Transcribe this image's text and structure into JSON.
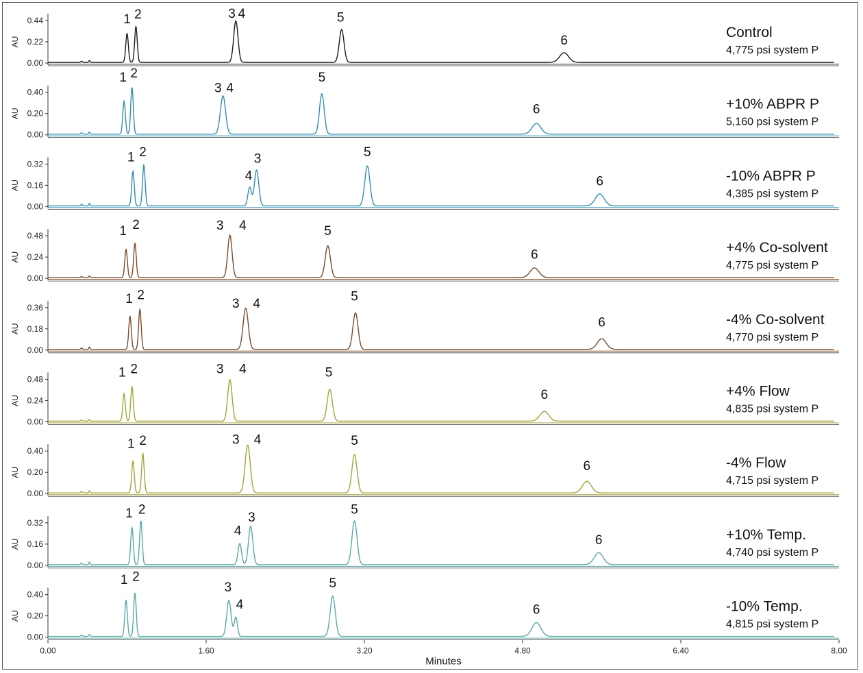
{
  "chart_data": {
    "type": "line",
    "xlabel": "Minutes",
    "ylabel": "AU",
    "xlim": [
      0,
      8
    ],
    "x_ticks": [
      "0.00",
      "1.60",
      "3.20",
      "4.80",
      "6.40",
      "8.00"
    ],
    "panels": [
      {
        "label": "Control",
        "pressure": "4,775 psi system P",
        "color": "#1a1a1a",
        "ymax": 0.44,
        "y_ticks": [
          "0.00",
          "0.22",
          "0.44"
        ],
        "peaks": [
          {
            "id": "1",
            "t": 0.8,
            "h": 0.3,
            "w": 0.013
          },
          {
            "id": "2",
            "t": 0.89,
            "h": 0.37,
            "w": 0.013
          },
          {
            "id": "3",
            "t": 1.9,
            "h": 0.43,
            "w": 0.022
          },
          {
            "id": "4",
            "t": 1.9,
            "h": 0.0,
            "w": 0.022
          },
          {
            "id": "5",
            "t": 2.97,
            "h": 0.34,
            "w": 0.024
          },
          {
            "id": "6",
            "t": 5.22,
            "h": 0.1,
            "w": 0.045
          }
        ],
        "labels": [
          {
            "id": "1",
            "t": 0.8,
            "h": 0.41
          },
          {
            "id": "2",
            "t": 0.91,
            "h": 0.46
          },
          {
            "id": "3",
            "t": 1.86,
            "h": 0.47
          },
          {
            "id": "4",
            "t": 1.96,
            "h": 0.47
          },
          {
            "id": "5",
            "t": 2.96,
            "h": 0.43
          },
          {
            "id": "6",
            "t": 5.22,
            "h": 0.19
          }
        ]
      },
      {
        "label": "+10% ABPR P",
        "pressure": "5,160 psi system P",
        "color": "#2f8fb0",
        "ymax": 0.4,
        "y_ticks": [
          "0.00",
          "0.20",
          "0.40"
        ],
        "peaks": [
          {
            "id": "1",
            "t": 0.77,
            "h": 0.31,
            "w": 0.013
          },
          {
            "id": "2",
            "t": 0.85,
            "h": 0.44,
            "w": 0.013
          },
          {
            "id": "3",
            "t": 1.77,
            "h": 0.36,
            "w": 0.026
          },
          {
            "id": "5",
            "t": 2.77,
            "h": 0.38,
            "w": 0.024
          },
          {
            "id": "6",
            "t": 4.94,
            "h": 0.1,
            "w": 0.045
          }
        ],
        "labels": [
          {
            "id": "1",
            "t": 0.76,
            "h": 0.5
          },
          {
            "id": "2",
            "t": 0.87,
            "h": 0.54
          },
          {
            "id": "3",
            "t": 1.72,
            "h": 0.4
          },
          {
            "id": "4",
            "t": 1.84,
            "h": 0.4
          },
          {
            "id": "5",
            "t": 2.77,
            "h": 0.5
          },
          {
            "id": "6",
            "t": 4.94,
            "h": 0.2
          }
        ]
      },
      {
        "label": "-10% ABPR P",
        "pressure": "4,385 psi system P",
        "color": "#2f8fb0",
        "ymax": 0.32,
        "y_ticks": [
          "0.00",
          "0.16",
          "0.32"
        ],
        "peaks": [
          {
            "id": "1",
            "t": 0.86,
            "h": 0.26,
            "w": 0.013
          },
          {
            "id": "2",
            "t": 0.97,
            "h": 0.31,
            "w": 0.013
          },
          {
            "id": "4",
            "t": 2.04,
            "h": 0.14,
            "w": 0.018
          },
          {
            "id": "3",
            "t": 2.11,
            "h": 0.27,
            "w": 0.022
          },
          {
            "id": "5",
            "t": 3.23,
            "h": 0.3,
            "w": 0.026
          },
          {
            "id": "6",
            "t": 5.58,
            "h": 0.09,
            "w": 0.045
          }
        ],
        "labels": [
          {
            "id": "1",
            "t": 0.84,
            "h": 0.34
          },
          {
            "id": "2",
            "t": 0.96,
            "h": 0.38
          },
          {
            "id": "4",
            "t": 2.03,
            "h": 0.2
          },
          {
            "id": "3",
            "t": 2.12,
            "h": 0.33
          },
          {
            "id": "5",
            "t": 3.23,
            "h": 0.38
          },
          {
            "id": "6",
            "t": 5.58,
            "h": 0.16
          }
        ]
      },
      {
        "label": "+4% Co-solvent",
        "pressure": "4,775 psi system P",
        "color": "#7a4a28",
        "ymax": 0.48,
        "y_ticks": [
          "0.00",
          "0.24",
          "0.48"
        ],
        "peaks": [
          {
            "id": "1",
            "t": 0.79,
            "h": 0.32,
            "w": 0.013
          },
          {
            "id": "2",
            "t": 0.88,
            "h": 0.39,
            "w": 0.013
          },
          {
            "id": "3",
            "t": 1.84,
            "h": 0.48,
            "w": 0.022
          },
          {
            "id": "5",
            "t": 2.83,
            "h": 0.36,
            "w": 0.026
          },
          {
            "id": "6",
            "t": 4.92,
            "h": 0.11,
            "w": 0.045
          }
        ],
        "labels": [
          {
            "id": "1",
            "t": 0.76,
            "h": 0.49
          },
          {
            "id": "2",
            "t": 0.89,
            "h": 0.56
          },
          {
            "id": "3",
            "t": 1.74,
            "h": 0.55
          },
          {
            "id": "4",
            "t": 1.97,
            "h": 0.55
          },
          {
            "id": "5",
            "t": 2.83,
            "h": 0.49
          },
          {
            "id": "6",
            "t": 4.92,
            "h": 0.22
          }
        ]
      },
      {
        "label": "-4% Co-solvent",
        "pressure": "4,770 psi system P",
        "color": "#7a4a28",
        "ymax": 0.36,
        "y_ticks": [
          "0.00",
          "0.18",
          "0.36"
        ],
        "peaks": [
          {
            "id": "1",
            "t": 0.83,
            "h": 0.28,
            "w": 0.013
          },
          {
            "id": "2",
            "t": 0.93,
            "h": 0.34,
            "w": 0.013
          },
          {
            "id": "3",
            "t": 2.0,
            "h": 0.35,
            "w": 0.026
          },
          {
            "id": "5",
            "t": 3.11,
            "h": 0.31,
            "w": 0.026
          },
          {
            "id": "6",
            "t": 5.6,
            "h": 0.09,
            "w": 0.045
          }
        ],
        "labels": [
          {
            "id": "1",
            "t": 0.82,
            "h": 0.4
          },
          {
            "id": "2",
            "t": 0.94,
            "h": 0.43
          },
          {
            "id": "3",
            "t": 1.9,
            "h": 0.36
          },
          {
            "id": "4",
            "t": 2.11,
            "h": 0.36
          },
          {
            "id": "5",
            "t": 3.1,
            "h": 0.42
          },
          {
            "id": "6",
            "t": 5.6,
            "h": 0.2
          }
        ]
      },
      {
        "label": "+4% Flow",
        "pressure": "4,835 psi system P",
        "color": "#a3a43a",
        "ymax": 0.48,
        "y_ticks": [
          "0.00",
          "0.24",
          "0.48"
        ],
        "peaks": [
          {
            "id": "1",
            "t": 0.77,
            "h": 0.31,
            "w": 0.013
          },
          {
            "id": "2",
            "t": 0.85,
            "h": 0.39,
            "w": 0.013
          },
          {
            "id": "3",
            "t": 1.84,
            "h": 0.47,
            "w": 0.022
          },
          {
            "id": "5",
            "t": 2.85,
            "h": 0.36,
            "w": 0.026
          },
          {
            "id": "6",
            "t": 5.02,
            "h": 0.11,
            "w": 0.045
          }
        ],
        "labels": [
          {
            "id": "1",
            "t": 0.75,
            "h": 0.51
          },
          {
            "id": "2",
            "t": 0.87,
            "h": 0.55
          },
          {
            "id": "3",
            "t": 1.74,
            "h": 0.55
          },
          {
            "id": "4",
            "t": 1.97,
            "h": 0.55
          },
          {
            "id": "5",
            "t": 2.84,
            "h": 0.51
          },
          {
            "id": "6",
            "t": 5.02,
            "h": 0.26
          }
        ]
      },
      {
        "label": "-4% Flow",
        "pressure": "4,715 psi system P",
        "color": "#a3a43a",
        "ymax": 0.4,
        "y_ticks": [
          "0.00",
          "0.20",
          "0.40"
        ],
        "peaks": [
          {
            "id": "1",
            "t": 0.86,
            "h": 0.3,
            "w": 0.013
          },
          {
            "id": "2",
            "t": 0.96,
            "h": 0.37,
            "w": 0.013
          },
          {
            "id": "3",
            "t": 2.02,
            "h": 0.45,
            "w": 0.026
          },
          {
            "id": "5",
            "t": 3.1,
            "h": 0.36,
            "w": 0.026
          },
          {
            "id": "6",
            "t": 5.45,
            "h": 0.11,
            "w": 0.045
          }
        ],
        "labels": [
          {
            "id": "1",
            "t": 0.84,
            "h": 0.43
          },
          {
            "id": "2",
            "t": 0.96,
            "h": 0.46
          },
          {
            "id": "3",
            "t": 1.9,
            "h": 0.47
          },
          {
            "id": "4",
            "t": 2.12,
            "h": 0.47
          },
          {
            "id": "5",
            "t": 3.1,
            "h": 0.46
          },
          {
            "id": "6",
            "t": 5.45,
            "h": 0.22
          }
        ]
      },
      {
        "label": "+10% Temp.",
        "pressure": "4,740 psi system P",
        "color": "#5aa9a3",
        "ymax": 0.32,
        "y_ticks": [
          "0.00",
          "0.16",
          "0.32"
        ],
        "peaks": [
          {
            "id": "1",
            "t": 0.85,
            "h": 0.28,
            "w": 0.013
          },
          {
            "id": "2",
            "t": 0.94,
            "h": 0.33,
            "w": 0.013
          },
          {
            "id": "4",
            "t": 1.94,
            "h": 0.16,
            "w": 0.018
          },
          {
            "id": "3",
            "t": 2.05,
            "h": 0.29,
            "w": 0.022
          },
          {
            "id": "5",
            "t": 3.1,
            "h": 0.33,
            "w": 0.026
          },
          {
            "id": "6",
            "t": 5.57,
            "h": 0.09,
            "w": 0.045
          }
        ],
        "labels": [
          {
            "id": "1",
            "t": 0.82,
            "h": 0.36
          },
          {
            "id": "2",
            "t": 0.95,
            "h": 0.39
          },
          {
            "id": "4",
            "t": 1.92,
            "h": 0.23
          },
          {
            "id": "3",
            "t": 2.06,
            "h": 0.33
          },
          {
            "id": "5",
            "t": 3.1,
            "h": 0.39
          },
          {
            "id": "6",
            "t": 5.57,
            "h": 0.16
          }
        ]
      },
      {
        "label": "-10% Temp.",
        "pressure": "4,815 psi system P",
        "color": "#5aa9a3",
        "ymax": 0.4,
        "y_ticks": [
          "0.00",
          "0.20",
          "0.40"
        ],
        "peaks": [
          {
            "id": "1",
            "t": 0.79,
            "h": 0.34,
            "w": 0.013
          },
          {
            "id": "2",
            "t": 0.88,
            "h": 0.41,
            "w": 0.013
          },
          {
            "id": "3",
            "t": 1.83,
            "h": 0.34,
            "w": 0.022
          },
          {
            "id": "4",
            "t": 1.9,
            "h": 0.18,
            "w": 0.016
          },
          {
            "id": "5",
            "t": 2.88,
            "h": 0.38,
            "w": 0.026
          },
          {
            "id": "6",
            "t": 4.94,
            "h": 0.13,
            "w": 0.045
          }
        ],
        "labels": [
          {
            "id": "1",
            "t": 0.77,
            "h": 0.5
          },
          {
            "id": "2",
            "t": 0.89,
            "h": 0.53
          },
          {
            "id": "3",
            "t": 1.82,
            "h": 0.43
          },
          {
            "id": "4",
            "t": 1.94,
            "h": 0.27
          },
          {
            "id": "5",
            "t": 2.88,
            "h": 0.47
          },
          {
            "id": "6",
            "t": 4.94,
            "h": 0.22
          }
        ]
      }
    ]
  }
}
